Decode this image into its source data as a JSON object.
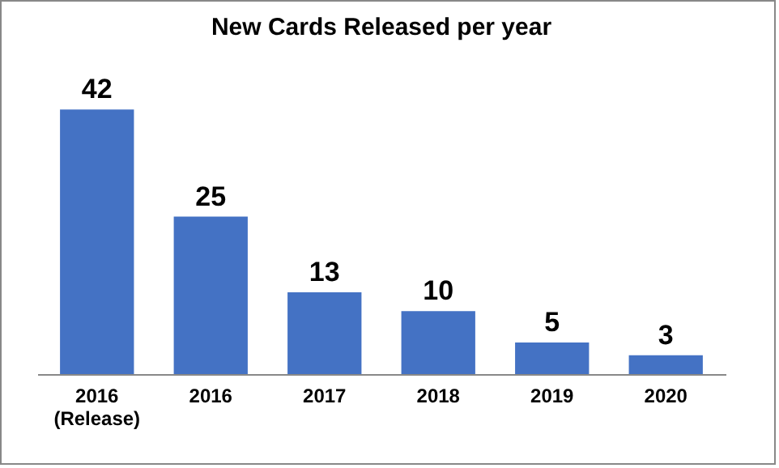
{
  "chart_data": {
    "type": "bar",
    "title": "New Cards Released per year",
    "categories": [
      "2016 (Release)",
      "2016",
      "2017",
      "2018",
      "2019",
      "2020"
    ],
    "values": [
      42,
      25,
      13,
      10,
      5,
      3
    ],
    "color": "#4472c4",
    "data_labels": true
  }
}
